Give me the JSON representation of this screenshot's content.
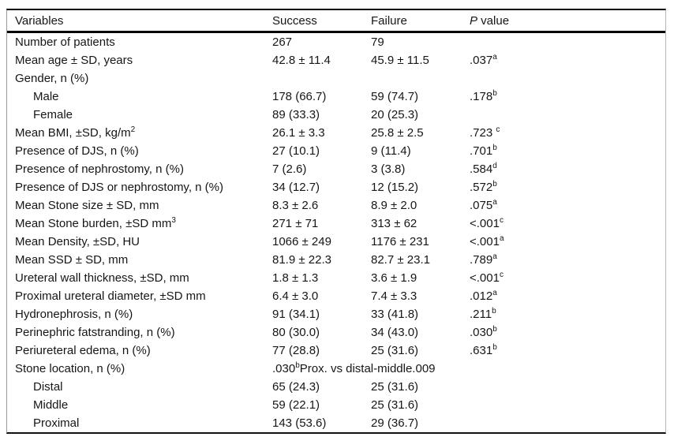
{
  "table": {
    "header": {
      "variables": "Variables",
      "success": "Success",
      "failure": "Failure",
      "p_italic": "P",
      "p_rest": " value"
    },
    "rows": [
      {
        "label": "Number of patients",
        "label_sup": "",
        "indent": 0,
        "success": "267",
        "failure": "79",
        "p": "",
        "p_sup": "",
        "p_after": ""
      },
      {
        "label": "Mean age ± SD, years",
        "label_sup": "",
        "indent": 0,
        "success": "42.8 ± 11.4",
        "failure": "45.9 ± 11.5",
        "p": ".037",
        "p_sup": "a",
        "p_after": ""
      },
      {
        "label": "Gender, n (%)",
        "label_sup": "",
        "indent": 0,
        "success": "",
        "failure": "",
        "p": "",
        "p_sup": "",
        "p_after": ""
      },
      {
        "label": "Male",
        "label_sup": "",
        "indent": 1,
        "success": "178 (66.7)",
        "failure": "59 (74.7)",
        "p": ".178",
        "p_sup": "b",
        "p_after": ""
      },
      {
        "label": "Female",
        "label_sup": "",
        "indent": 1,
        "success": "89 (33.3)",
        "failure": "20 (25.3)",
        "p": "",
        "p_sup": "",
        "p_after": ""
      },
      {
        "label": "Mean BMI, ±SD, kg/m",
        "label_sup": "2",
        "indent": 0,
        "success": "26.1 ± 3.3",
        "failure": "25.8 ± 2.5",
        "p": ".723 ",
        "p_sup": "c",
        "p_after": ""
      },
      {
        "label": "Presence of DJS, n (%)",
        "label_sup": "",
        "indent": 0,
        "success": "27 (10.1)",
        "failure": "9 (11.4)",
        "p": ".701",
        "p_sup": "b",
        "p_after": ""
      },
      {
        "label": "Presence of nephrostomy, n (%)",
        "label_sup": "",
        "indent": 0,
        "success": "7 (2.6)",
        "failure": "3 (3.8)",
        "p": ".584",
        "p_sup": "d",
        "p_after": ""
      },
      {
        "label": "Presence of DJS or nephrostomy, n (%)",
        "label_sup": "",
        "indent": 0,
        "success": "34 (12.7)",
        "failure": "12 (15.2)",
        "p": ".572",
        "p_sup": "b",
        "p_after": ""
      },
      {
        "label": "Mean Stone size ± SD, mm",
        "label_sup": "",
        "indent": 0,
        "success": "8.3 ± 2.6",
        "failure": "8.9 ± 2.0",
        "p": ".075",
        "p_sup": "a",
        "p_after": ""
      },
      {
        "label": "Mean Stone burden, ±SD mm",
        "label_sup": "3",
        "indent": 0,
        "success": "271 ± 71",
        "failure": "313 ± 62",
        "p": "<.001",
        "p_sup": "c",
        "p_after": ""
      },
      {
        "label": "Mean Density, ±SD, HU",
        "label_sup": "",
        "indent": 0,
        "success": "1066 ± 249",
        "failure": "1176 ± 231",
        "p": "<.001",
        "p_sup": "a",
        "p_after": ""
      },
      {
        "label": "Mean SSD ± SD, mm",
        "label_sup": "",
        "indent": 0,
        "success": "81.9 ± 22.3",
        "failure": "82.7 ± 23.1",
        "p": ".789",
        "p_sup": "a",
        "p_after": ""
      },
      {
        "label": "Ureteral wall thickness, ±SD, mm",
        "label_sup": "",
        "indent": 0,
        "success": "1.8 ± 1.3",
        "failure": "3.6 ± 1.9",
        "p": "<.001",
        "p_sup": "c",
        "p_after": ""
      },
      {
        "label": "Proximal ureteral diameter, ±SD mm",
        "label_sup": "",
        "indent": 0,
        "success": "6.4 ± 3.0",
        "failure": "7.4 ± 3.3",
        "p": ".012",
        "p_sup": "a",
        "p_after": ""
      },
      {
        "label": "Hydronephrosis, n (%)",
        "label_sup": "",
        "indent": 0,
        "success": "91 (34.1)",
        "failure": "33 (41.8)",
        "p": ".211",
        "p_sup": "b",
        "p_after": ""
      },
      {
        "label": "Perinephric fatstranding, n (%)",
        "label_sup": "",
        "indent": 0,
        "success": "80 (30.0)",
        "failure": "34 (43.0)",
        "p": ".030",
        "p_sup": "b",
        "p_after": ""
      },
      {
        "label": "Periureteral edema, n (%)",
        "label_sup": "",
        "indent": 0,
        "success": "77 (28.8)",
        "failure": "25 (31.6)",
        "p": ".631",
        "p_sup": "b",
        "p_after": ""
      },
      {
        "label": "Stone location, n (%)",
        "label_sup": "",
        "indent": 0,
        "success": "",
        "failure": "",
        "p": ".030",
        "p_sup": "b",
        "p_after": "Prox. vs distal-middle.009"
      },
      {
        "label": "Distal",
        "label_sup": "",
        "indent": 1,
        "success": "65 (24.3)",
        "failure": "25 (31.6)",
        "p": "",
        "p_sup": "",
        "p_after": ""
      },
      {
        "label": "Middle",
        "label_sup": "",
        "indent": 1,
        "success": "59 (22.1)",
        "failure": "25 (31.6)",
        "p": "",
        "p_sup": "",
        "p_after": ""
      },
      {
        "label": "Proximal",
        "label_sup": "",
        "indent": 1,
        "success": "143 (53.6)",
        "failure": "29 (36.7)",
        "p": "",
        "p_sup": "",
        "p_after": ""
      }
    ]
  },
  "colors": {
    "background": "#ffffff",
    "text": "#161616",
    "rule": "#000000",
    "side_border": "#9a9a9a"
  }
}
